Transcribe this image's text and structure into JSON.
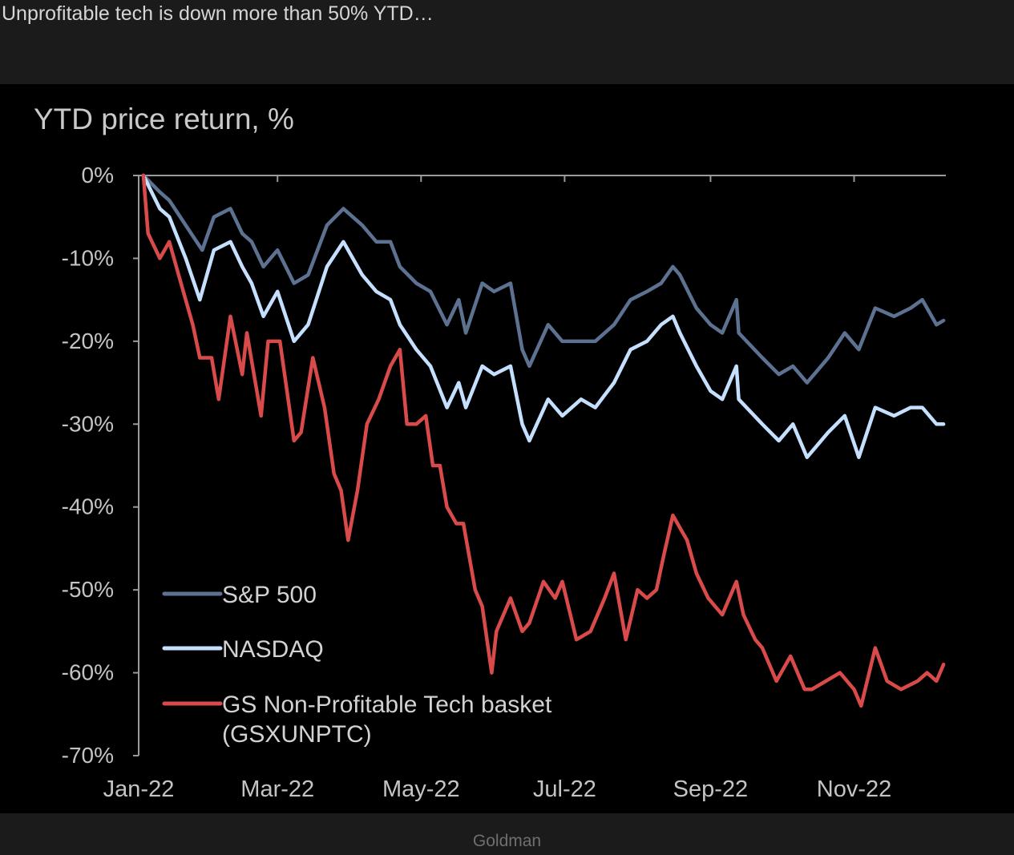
{
  "headline": "Unprofitable tech is down more than 50% YTD…",
  "caption": "Goldman",
  "chart_data": {
    "type": "line",
    "title": "YTD price return, %",
    "xlabel": "",
    "ylabel": "",
    "ylim": [
      -70,
      0
    ],
    "yticks": [
      {
        "value": 0,
        "label": "0%"
      },
      {
        "value": -10,
        "label": "-10%"
      },
      {
        "value": -20,
        "label": "-20%"
      },
      {
        "value": -30,
        "label": "-30%"
      },
      {
        "value": -40,
        "label": "-40%"
      },
      {
        "value": -50,
        "label": "-50%"
      },
      {
        "value": -60,
        "label": "-60%"
      },
      {
        "value": -70,
        "label": "-70%"
      }
    ],
    "xlim": [
      "2022-01-01",
      "2022-12-10"
    ],
    "xticks": [
      {
        "value": "2022-01-01",
        "label": "Jan-22"
      },
      {
        "value": "2022-03-01",
        "label": "Mar-22"
      },
      {
        "value": "2022-05-01",
        "label": "May-22"
      },
      {
        "value": "2022-07-01",
        "label": "Jul-22"
      },
      {
        "value": "2022-09-01",
        "label": "Sep-22"
      },
      {
        "value": "2022-11-01",
        "label": "Nov-22"
      }
    ],
    "grid": false,
    "legend": "bottom-left",
    "series": [
      {
        "name": "S&P 500",
        "color": "#5d7191",
        "points": [
          [
            "2022-01-03",
            0
          ],
          [
            "2022-01-10",
            -2
          ],
          [
            "2022-01-14",
            -3
          ],
          [
            "2022-01-21",
            -6
          ],
          [
            "2022-01-28",
            -9
          ],
          [
            "2022-02-02",
            -5
          ],
          [
            "2022-02-09",
            -4
          ],
          [
            "2022-02-14",
            -7
          ],
          [
            "2022-02-18",
            -8
          ],
          [
            "2022-02-23",
            -11
          ],
          [
            "2022-03-01",
            -9
          ],
          [
            "2022-03-08",
            -13
          ],
          [
            "2022-03-14",
            -12
          ],
          [
            "2022-03-22",
            -6
          ],
          [
            "2022-03-29",
            -4
          ],
          [
            "2022-04-06",
            -6
          ],
          [
            "2022-04-12",
            -8
          ],
          [
            "2022-04-18",
            -8
          ],
          [
            "2022-04-22",
            -11
          ],
          [
            "2022-04-29",
            -13
          ],
          [
            "2022-05-05",
            -14
          ],
          [
            "2022-05-12",
            -18
          ],
          [
            "2022-05-17",
            -15
          ],
          [
            "2022-05-20",
            -19
          ],
          [
            "2022-05-27",
            -13
          ],
          [
            "2022-06-01",
            -14
          ],
          [
            "2022-06-08",
            -13
          ],
          [
            "2022-06-13",
            -21
          ],
          [
            "2022-06-16",
            -23
          ],
          [
            "2022-06-24",
            -18
          ],
          [
            "2022-06-30",
            -20
          ],
          [
            "2022-07-08",
            -20
          ],
          [
            "2022-07-14",
            -20
          ],
          [
            "2022-07-22",
            -18
          ],
          [
            "2022-07-29",
            -15
          ],
          [
            "2022-08-05",
            -14
          ],
          [
            "2022-08-11",
            -13
          ],
          [
            "2022-08-16",
            -11
          ],
          [
            "2022-08-19",
            -12
          ],
          [
            "2022-08-26",
            -16
          ],
          [
            "2022-09-01",
            -18
          ],
          [
            "2022-09-06",
            -19
          ],
          [
            "2022-09-12",
            -15
          ],
          [
            "2022-09-13",
            -19
          ],
          [
            "2022-09-23",
            -22
          ],
          [
            "2022-09-30",
            -24
          ],
          [
            "2022-10-06",
            -23
          ],
          [
            "2022-10-12",
            -25
          ],
          [
            "2022-10-21",
            -22
          ],
          [
            "2022-10-28",
            -19
          ],
          [
            "2022-11-03",
            -21
          ],
          [
            "2022-11-10",
            -16
          ],
          [
            "2022-11-18",
            -17
          ],
          [
            "2022-11-25",
            -16
          ],
          [
            "2022-11-30",
            -15
          ],
          [
            "2022-12-06",
            -18
          ],
          [
            "2022-12-09",
            -17.5
          ]
        ]
      },
      {
        "name": "NASDAQ",
        "color": "#c5e0ff",
        "points": [
          [
            "2022-01-03",
            0
          ],
          [
            "2022-01-10",
            -4
          ],
          [
            "2022-01-14",
            -5
          ],
          [
            "2022-01-21",
            -10
          ],
          [
            "2022-01-27",
            -15
          ],
          [
            "2022-02-02",
            -9
          ],
          [
            "2022-02-09",
            -8
          ],
          [
            "2022-02-14",
            -11
          ],
          [
            "2022-02-18",
            -13
          ],
          [
            "2022-02-23",
            -17
          ],
          [
            "2022-03-01",
            -14
          ],
          [
            "2022-03-08",
            -20
          ],
          [
            "2022-03-14",
            -18
          ],
          [
            "2022-03-22",
            -11
          ],
          [
            "2022-03-29",
            -8
          ],
          [
            "2022-04-06",
            -12
          ],
          [
            "2022-04-12",
            -14
          ],
          [
            "2022-04-18",
            -15
          ],
          [
            "2022-04-22",
            -18
          ],
          [
            "2022-04-29",
            -21
          ],
          [
            "2022-05-05",
            -23
          ],
          [
            "2022-05-12",
            -28
          ],
          [
            "2022-05-17",
            -25
          ],
          [
            "2022-05-20",
            -28
          ],
          [
            "2022-05-27",
            -23
          ],
          [
            "2022-06-01",
            -24
          ],
          [
            "2022-06-08",
            -23
          ],
          [
            "2022-06-13",
            -30
          ],
          [
            "2022-06-16",
            -32
          ],
          [
            "2022-06-24",
            -27
          ],
          [
            "2022-06-30",
            -29
          ],
          [
            "2022-07-08",
            -27
          ],
          [
            "2022-07-14",
            -28
          ],
          [
            "2022-07-22",
            -25
          ],
          [
            "2022-07-29",
            -21
          ],
          [
            "2022-08-05",
            -20
          ],
          [
            "2022-08-11",
            -18
          ],
          [
            "2022-08-16",
            -17
          ],
          [
            "2022-08-19",
            -19
          ],
          [
            "2022-08-26",
            -23
          ],
          [
            "2022-09-01",
            -26
          ],
          [
            "2022-09-06",
            -27
          ],
          [
            "2022-09-12",
            -23
          ],
          [
            "2022-09-13",
            -27
          ],
          [
            "2022-09-23",
            -30
          ],
          [
            "2022-09-30",
            -32
          ],
          [
            "2022-10-06",
            -30
          ],
          [
            "2022-10-12",
            -34
          ],
          [
            "2022-10-21",
            -31
          ],
          [
            "2022-10-28",
            -29
          ],
          [
            "2022-11-03",
            -34
          ],
          [
            "2022-11-10",
            -28
          ],
          [
            "2022-11-18",
            -29
          ],
          [
            "2022-11-25",
            -28
          ],
          [
            "2022-11-30",
            -28
          ],
          [
            "2022-12-06",
            -30
          ],
          [
            "2022-12-09",
            -30
          ]
        ]
      },
      {
        "name": "GS Non-Profitable Tech basket (GSXUNPTC)",
        "color": "#d94a4a",
        "points": [
          [
            "2022-01-03",
            0
          ],
          [
            "2022-01-05",
            -7
          ],
          [
            "2022-01-10",
            -10
          ],
          [
            "2022-01-14",
            -8
          ],
          [
            "2022-01-19",
            -13
          ],
          [
            "2022-01-24",
            -18
          ],
          [
            "2022-01-27",
            -22
          ],
          [
            "2022-02-01",
            -22
          ],
          [
            "2022-02-04",
            -27
          ],
          [
            "2022-02-09",
            -17
          ],
          [
            "2022-02-14",
            -24
          ],
          [
            "2022-02-16",
            -19
          ],
          [
            "2022-02-22",
            -29
          ],
          [
            "2022-02-25",
            -20
          ],
          [
            "2022-03-02",
            -20
          ],
          [
            "2022-03-08",
            -32
          ],
          [
            "2022-03-11",
            -31
          ],
          [
            "2022-03-16",
            -22
          ],
          [
            "2022-03-21",
            -28
          ],
          [
            "2022-03-25",
            -36
          ],
          [
            "2022-03-28",
            -38
          ],
          [
            "2022-03-31",
            -44
          ],
          [
            "2022-04-04",
            -38
          ],
          [
            "2022-04-08",
            -30
          ],
          [
            "2022-04-13",
            -27
          ],
          [
            "2022-04-18",
            -23
          ],
          [
            "2022-04-22",
            -21
          ],
          [
            "2022-04-25",
            -30
          ],
          [
            "2022-04-29",
            -30
          ],
          [
            "2022-05-03",
            -29
          ],
          [
            "2022-05-06",
            -35
          ],
          [
            "2022-05-09",
            -35
          ],
          [
            "2022-05-12",
            -40
          ],
          [
            "2022-05-16",
            -42
          ],
          [
            "2022-05-19",
            -42
          ],
          [
            "2022-05-24",
            -50
          ],
          [
            "2022-05-27",
            -52
          ],
          [
            "2022-05-31",
            -60
          ],
          [
            "2022-06-02",
            -55
          ],
          [
            "2022-06-08",
            -51
          ],
          [
            "2022-06-13",
            -55
          ],
          [
            "2022-06-16",
            -54
          ],
          [
            "2022-06-22",
            -49
          ],
          [
            "2022-06-27",
            -51
          ],
          [
            "2022-06-30",
            -49
          ],
          [
            "2022-07-06",
            -56
          ],
          [
            "2022-07-12",
            -55
          ],
          [
            "2022-07-18",
            -51
          ],
          [
            "2022-07-22",
            -48
          ],
          [
            "2022-07-27",
            -56
          ],
          [
            "2022-08-01",
            -50
          ],
          [
            "2022-08-05",
            -51
          ],
          [
            "2022-08-09",
            -50
          ],
          [
            "2022-08-12",
            -46
          ],
          [
            "2022-08-16",
            -41
          ],
          [
            "2022-08-22",
            -44
          ],
          [
            "2022-08-26",
            -48
          ],
          [
            "2022-08-31",
            -51
          ],
          [
            "2022-09-06",
            -53
          ],
          [
            "2022-09-12",
            -49
          ],
          [
            "2022-09-15",
            -53
          ],
          [
            "2022-09-20",
            -56
          ],
          [
            "2022-09-23",
            -57
          ],
          [
            "2022-09-29",
            -61
          ],
          [
            "2022-10-05",
            -58
          ],
          [
            "2022-10-11",
            -62
          ],
          [
            "2022-10-14",
            -62
          ],
          [
            "2022-10-20",
            -61
          ],
          [
            "2022-10-26",
            -60
          ],
          [
            "2022-11-01",
            -62
          ],
          [
            "2022-11-04",
            -64
          ],
          [
            "2022-11-10",
            -57
          ],
          [
            "2022-11-15",
            -61
          ],
          [
            "2022-11-21",
            -62
          ],
          [
            "2022-11-28",
            -61
          ],
          [
            "2022-12-02",
            -60
          ],
          [
            "2022-12-06",
            -61
          ],
          [
            "2022-12-09",
            -59
          ]
        ]
      }
    ]
  }
}
